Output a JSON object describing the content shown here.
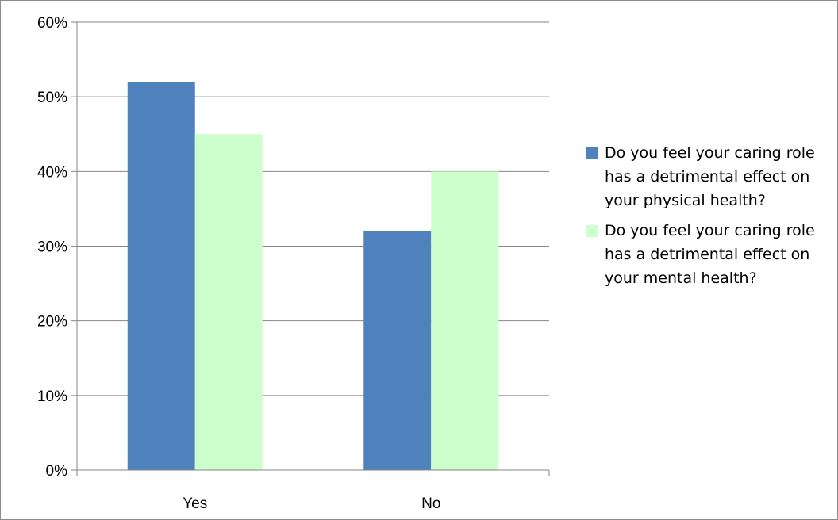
{
  "chart_data": {
    "type": "bar",
    "title": "",
    "xlabel": "",
    "ylabel": "",
    "categories": [
      "Yes",
      "No"
    ],
    "ylim": [
      0,
      60
    ],
    "yticks": [
      0,
      10,
      20,
      30,
      40,
      50,
      60
    ],
    "ytick_labels": [
      "0%",
      "10%",
      "20%",
      "30%",
      "40%",
      "50%",
      "60%"
    ],
    "grid": true,
    "legend_position": "right",
    "series": [
      {
        "name": "Do you feel your caring role has a detrimental effect on your physical health?",
        "values": [
          52,
          32
        ],
        "color": "#4f81bd"
      },
      {
        "name": "Do you feel your caring role has a detrimental effect on your mental health?",
        "values": [
          45,
          40
        ],
        "color": "#ccffcc"
      }
    ]
  }
}
